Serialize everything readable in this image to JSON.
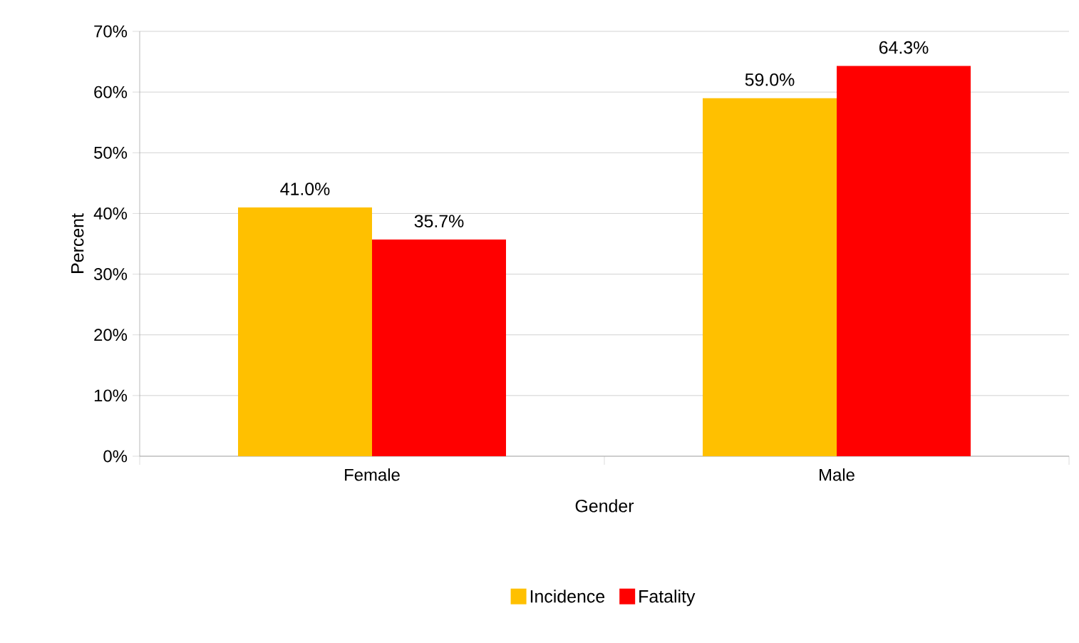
{
  "chart_data": {
    "type": "bar",
    "xlabel": "Gender",
    "ylabel": "Percent",
    "categories": [
      "Female",
      "Male"
    ],
    "series": [
      {
        "name": "Incidence",
        "color": "#ffc000",
        "values": [
          41.0,
          59.0
        ],
        "value_labels": [
          "41.0%",
          "59.0%"
        ]
      },
      {
        "name": "Fatality",
        "color": "#ff0000",
        "values": [
          35.7,
          64.3
        ],
        "value_labels": [
          "35.7%",
          "64.3%"
        ]
      }
    ],
    "ylim": [
      0,
      70
    ],
    "yticks": [
      {
        "value": 0,
        "label": "0%"
      },
      {
        "value": 10,
        "label": "10%"
      },
      {
        "value": 20,
        "label": "20%"
      },
      {
        "value": 30,
        "label": "30%"
      },
      {
        "value": 40,
        "label": "40%"
      },
      {
        "value": 50,
        "label": "50%"
      },
      {
        "value": 60,
        "label": "60%"
      },
      {
        "value": 70,
        "label": "70%"
      }
    ],
    "grid": "y",
    "legend": "bottom"
  }
}
